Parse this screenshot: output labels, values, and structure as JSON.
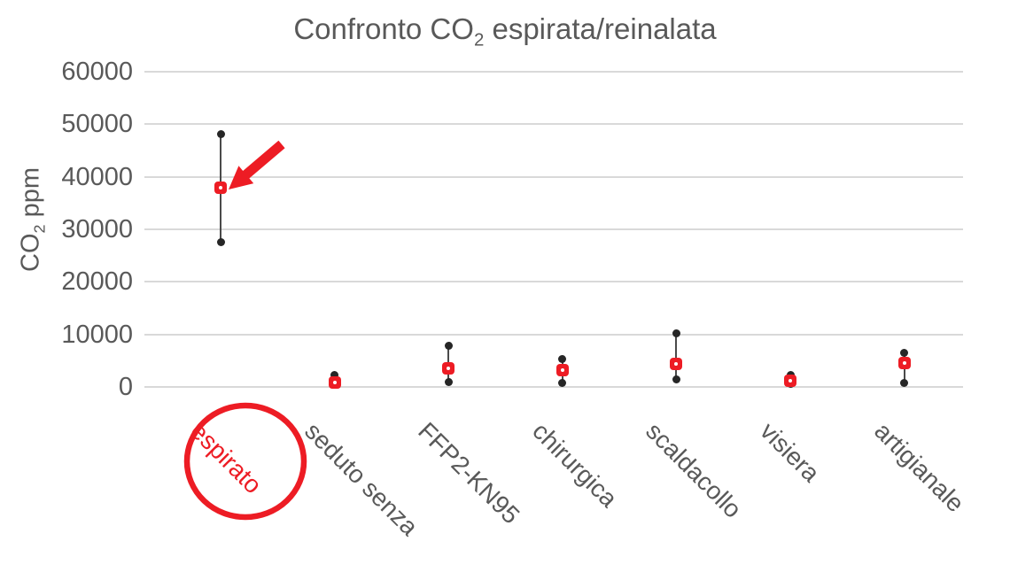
{
  "header": {
    "title_prefix": "Confronto CO",
    "title_sub": "2",
    "title_suffix": " espirata/reinalata"
  },
  "y_axis_title": {
    "prefix": "CO",
    "sub": "2",
    "suffix": " ppm"
  },
  "chart_data": {
    "type": "scatter",
    "title": "Confronto CO2 espirata/reinalata",
    "ylabel": "CO2 ppm",
    "xlabel": "",
    "ylim": [
      0,
      60000
    ],
    "yticks": [
      0,
      10000,
      20000,
      30000,
      40000,
      50000,
      60000
    ],
    "grid": "horizontal",
    "legend": "none",
    "categories": [
      "espirato",
      "seduto senza",
      "FFP2-KN95",
      "chirurgica",
      "scaldacollo",
      "visiera",
      "artigianale"
    ],
    "highlight_category": "espirato",
    "points": [
      {
        "category": "espirato",
        "min": 27500,
        "mid": 38000,
        "max": 48200
      },
      {
        "category": "seduto senza",
        "min": 400,
        "mid": 800,
        "max": 2300
      },
      {
        "category": "FFP2-KN95",
        "min": 1000,
        "mid": 3600,
        "max": 7800
      },
      {
        "category": "chirurgica",
        "min": 800,
        "mid": 3200,
        "max": 5300
      },
      {
        "category": "scaldacollo",
        "min": 1400,
        "mid": 4400,
        "max": 10200
      },
      {
        "category": "visiera",
        "min": 600,
        "mid": 1100,
        "max": 2300
      },
      {
        "category": "artigianale",
        "min": 800,
        "mid": 4500,
        "max": 6500
      }
    ],
    "series_meaning": {
      "min": "black dot (lower value)",
      "mid": "red square marker (rebreathed CO2 highlighted value)",
      "max": "black dot (upper value)"
    },
    "annotations": [
      {
        "type": "arrow",
        "target": "espirato mid marker",
        "color": "#ed1c24"
      },
      {
        "type": "circle",
        "target": "espirato axis label",
        "color": "#ed1c24"
      }
    ]
  },
  "colors": {
    "text_gray": "#595959",
    "gridline": "#d9d9d9",
    "dot_black": "#262626",
    "connector": "#4a4a4a",
    "red": "#ed1c24",
    "background": "#ffffff"
  }
}
